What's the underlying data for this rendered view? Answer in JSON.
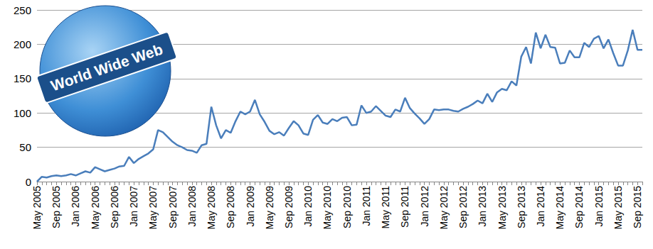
{
  "chart_data": {
    "type": "line",
    "annotation": "World Wide Web",
    "categories": [
      "May 2005",
      null,
      null,
      null,
      "Sep 2005",
      null,
      null,
      null,
      "Jan 2006",
      null,
      null,
      null,
      "May 2006",
      null,
      null,
      null,
      "Sep 2006",
      null,
      null,
      null,
      "Jan 2007",
      null,
      null,
      null,
      "May 2007",
      null,
      null,
      null,
      "Sep 2007",
      null,
      null,
      null,
      "Jan 2008",
      null,
      null,
      null,
      "May 2008",
      null,
      null,
      null,
      "Sep 2008",
      null,
      null,
      null,
      "Jan 2009",
      null,
      null,
      null,
      "May 2009",
      null,
      null,
      null,
      "Sep 2009",
      null,
      null,
      null,
      "Jan 2010",
      null,
      null,
      null,
      "May 2010",
      null,
      null,
      null,
      "Sep 2010",
      null,
      null,
      null,
      "Jan 2011",
      null,
      null,
      null,
      "May 2011",
      null,
      null,
      null,
      "Sep 2011",
      null,
      null,
      null,
      "Jan 2012",
      null,
      null,
      null,
      "May 2012",
      null,
      null,
      null,
      "Sep 2012",
      null,
      null,
      null,
      "Jan 2013",
      null,
      null,
      null,
      "May 2013",
      null,
      null,
      null,
      "Sep 2013",
      null,
      null,
      null,
      "Jan 2014",
      null,
      null,
      null,
      "May 2014",
      null,
      null,
      null,
      "Sep 2014",
      null,
      null,
      null,
      "Jan 2015",
      null,
      null,
      null,
      "May 2015",
      null,
      null,
      null,
      "Sep 2015",
      null
    ],
    "values": [
      0,
      7,
      6,
      8,
      9,
      8,
      9,
      11,
      9,
      12,
      15,
      13,
      21,
      18,
      15,
      17,
      19,
      22,
      23,
      36,
      27,
      33,
      37,
      41,
      47,
      75,
      72,
      65,
      58,
      53,
      50,
      46,
      45,
      42,
      53,
      55,
      109,
      82,
      63,
      75,
      71,
      88,
      102,
      98,
      102,
      119,
      98,
      87,
      74,
      69,
      72,
      67,
      78,
      88,
      82,
      70,
      68,
      90,
      97,
      86,
      84,
      91,
      88,
      93,
      94,
      82,
      83,
      111,
      100,
      102,
      110,
      103,
      96,
      94,
      105,
      102,
      122,
      107,
      99,
      92,
      84,
      91,
      105,
      104,
      105,
      105,
      103,
      102,
      106,
      109,
      113,
      118,
      114,
      128,
      116,
      130,
      135,
      133,
      146,
      140,
      182,
      196,
      172,
      217,
      194,
      214,
      196,
      195,
      172,
      173,
      191,
      181,
      181,
      202,
      196,
      208,
      212,
      194,
      207,
      187,
      169,
      169,
      191,
      221,
      192,
      192
    ],
    "color": "#4a7ebb",
    "ylim": [
      0,
      250
    ],
    "yticks": [
      0,
      50,
      100,
      150,
      200,
      250
    ],
    "grid": true
  }
}
